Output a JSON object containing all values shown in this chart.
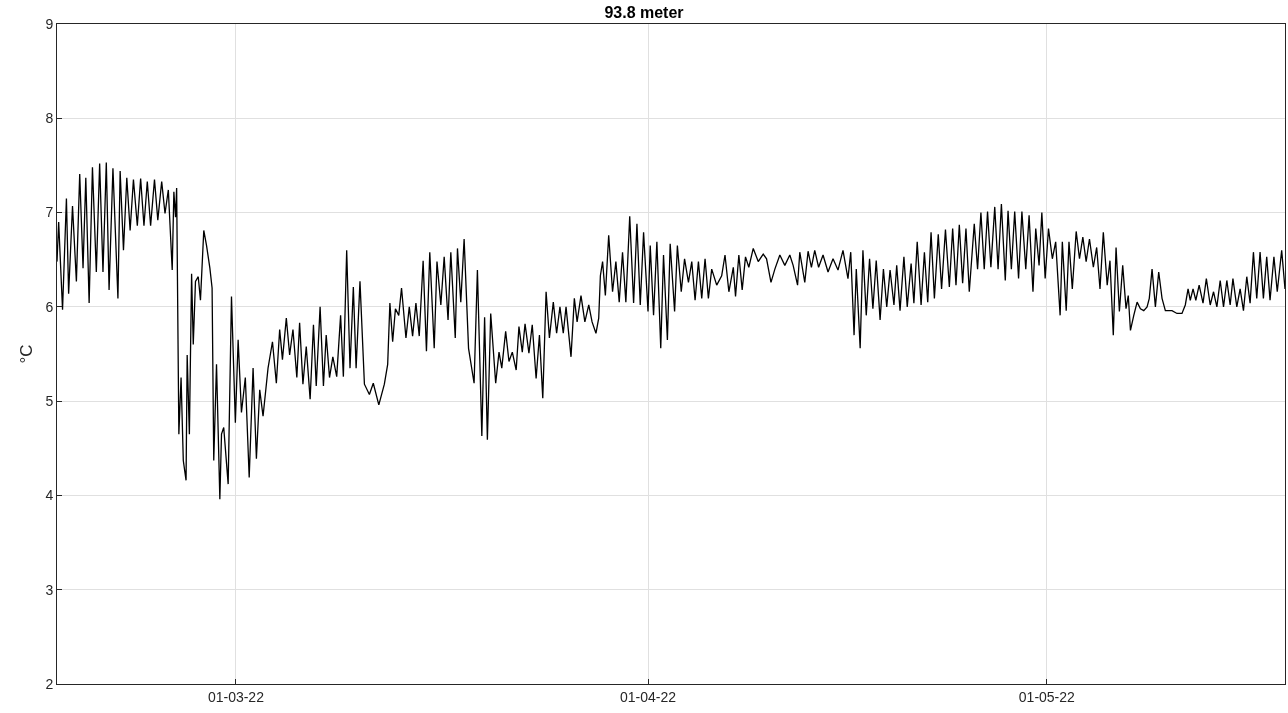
{
  "chart_data": {
    "type": "line",
    "title": "93.8 meter",
    "ylabel": "°C",
    "xlim": [
      "2022-02-15T13:00",
      "2022-05-18T22:00"
    ],
    "ylim": [
      2,
      9
    ],
    "yticks": [
      2,
      3,
      4,
      5,
      6,
      7,
      8,
      9
    ],
    "xticks": [
      {
        "value": "2022-03-01",
        "label": "01-03-22"
      },
      {
        "value": "2022-04-01",
        "label": "01-04-22"
      },
      {
        "value": "2022-05-01",
        "label": "01-05-22"
      }
    ],
    "grid": true,
    "marker": "none",
    "line_style": "solid",
    "x": [
      "2022-02-15T13:00",
      "2022-02-15T16:00",
      "2022-02-15T23:00",
      "2022-02-16T06:00",
      "2022-02-16T10:00",
      "2022-02-16T17:00",
      "2022-02-17T00:00",
      "2022-02-17T06:00",
      "2022-02-17T12:00",
      "2022-02-17T17:00",
      "2022-02-17T23:00",
      "2022-02-18T05:00",
      "2022-02-18T12:00",
      "2022-02-18T18:00",
      "2022-02-19T00:00",
      "2022-02-19T06:00",
      "2022-02-19T11:00",
      "2022-02-19T18:00",
      "2022-02-20T03:00",
      "2022-02-20T07:00",
      "2022-02-20T13:00",
      "2022-02-20T19:00",
      "2022-02-21T01:00",
      "2022-02-21T07:00",
      "2022-02-21T14:00",
      "2022-02-21T20:00",
      "2022-02-22T02:00",
      "2022-02-22T08:00",
      "2022-02-22T14:00",
      "2022-02-22T21:00",
      "2022-02-23T03:00",
      "2022-02-23T10:00",
      "2022-02-23T16:00",
      "2022-02-23T22:00",
      "2022-02-24T05:00",
      "2022-02-24T08:00",
      "2022-02-24T11:00",
      "2022-02-24T13:00",
      "2022-02-24T17:00",
      "2022-02-24T21:00",
      "2022-02-25T01:00",
      "2022-02-25T06:00",
      "2022-02-25T08:00",
      "2022-02-25T12:00",
      "2022-02-25T16:00",
      "2022-02-25T19:00",
      "2022-02-25T23:00",
      "2022-02-26T04:00",
      "2022-02-26T08:00",
      "2022-02-26T14:00",
      "2022-02-26T19:00",
      "2022-02-27T01:00",
      "2022-02-27T05:00",
      "2022-02-27T08:00",
      "2022-02-27T13:00",
      "2022-02-27T19:00",
      "2022-02-27T22:00",
      "2022-02-28T02:00",
      "2022-02-28T10:00",
      "2022-02-28T16:00",
      "2022-02-28T23:00",
      "2022-03-01T04:00",
      "2022-03-01T10:00",
      "2022-03-01T17:00",
      "2022-03-02T00:00",
      "2022-03-02T07:00",
      "2022-03-02T13:00",
      "2022-03-02T19:00",
      "2022-03-03T01:00",
      "2022-03-03T10:00",
      "2022-03-03T18:00",
      "2022-03-04T01:00",
      "2022-03-04T07:00",
      "2022-03-04T12:00",
      "2022-03-04T19:00",
      "2022-03-05T01:00",
      "2022-03-05T07:00",
      "2022-03-05T14:00",
      "2022-03-05T19:00",
      "2022-03-06T01:00",
      "2022-03-06T07:00",
      "2022-03-06T14:00",
      "2022-03-06T20:00",
      "2022-03-07T01:00",
      "2022-03-07T08:00",
      "2022-03-07T14:00",
      "2022-03-07T19:00",
      "2022-03-08T01:00",
      "2022-03-08T07:00",
      "2022-03-08T14:00",
      "2022-03-08T21:00",
      "2022-03-09T02:00",
      "2022-03-09T08:00",
      "2022-03-09T14:00",
      "2022-03-09T20:00",
      "2022-03-10T01:00",
      "2022-03-10T08:00",
      "2022-03-10T16:00",
      "2022-03-11T01:00",
      "2022-03-11T08:00",
      "2022-03-11T18:00",
      "2022-03-12T04:00",
      "2022-03-12T10:00",
      "2022-03-12T14:00",
      "2022-03-12T19:00",
      "2022-03-13T00:00",
      "2022-03-13T06:00",
      "2022-03-13T11:00",
      "2022-03-13T19:00",
      "2022-03-14T01:00",
      "2022-03-14T07:00",
      "2022-03-14T13:00",
      "2022-03-14T19:00",
      "2022-03-15T02:00",
      "2022-03-15T08:00",
      "2022-03-15T14:00",
      "2022-03-15T22:00",
      "2022-03-16T03:00",
      "2022-03-16T10:00",
      "2022-03-16T16:00",
      "2022-03-16T23:00",
      "2022-03-17T04:00",
      "2022-03-17T12:00",
      "2022-03-17T16:00",
      "2022-03-17T22:00",
      "2022-03-18T04:00",
      "2022-03-18T12:00",
      "2022-03-18T22:00",
      "2022-03-19T04:00",
      "2022-03-19T12:00",
      "2022-03-19T17:00",
      "2022-03-19T22:00",
      "2022-03-20T04:00",
      "2022-03-20T13:00",
      "2022-03-20T19:00",
      "2022-03-21T00:00",
      "2022-03-21T07:00",
      "2022-03-21T13:00",
      "2022-03-21T19:00",
      "2022-03-22T02:00",
      "2022-03-22T07:00",
      "2022-03-22T13:00",
      "2022-03-22T18:00",
      "2022-03-23T01:00",
      "2022-03-23T07:00",
      "2022-03-23T14:00",
      "2022-03-23T20:00",
      "2022-03-24T02:00",
      "2022-03-24T08:00",
      "2022-03-24T14:00",
      "2022-03-24T21:00",
      "2022-03-25T03:00",
      "2022-03-25T09:00",
      "2022-03-25T15:00",
      "2022-03-25T20:00",
      "2022-03-26T05:00",
      "2022-03-26T11:00",
      "2022-03-26T16:00",
      "2022-03-26T23:00",
      "2022-03-27T06:00",
      "2022-03-27T13:00",
      "2022-03-27T19:00",
      "2022-03-28T02:00",
      "2022-03-28T07:00",
      "2022-03-28T10:00",
      "2022-03-28T14:00",
      "2022-03-28T19:00",
      "2022-03-29T01:00",
      "2022-03-29T08:00",
      "2022-03-29T14:00",
      "2022-03-29T20:00",
      "2022-03-30T02:00",
      "2022-03-30T08:00",
      "2022-03-30T15:00",
      "2022-03-30T22:00",
      "2022-03-31T04:00",
      "2022-03-31T10:00",
      "2022-03-31T16:00",
      "2022-04-01T00:00",
      "2022-04-01T04:00",
      "2022-04-01T10:00",
      "2022-04-01T16:00",
      "2022-04-01T23:00",
      "2022-04-02T04:00",
      "2022-04-02T11:00",
      "2022-04-02T16:00",
      "2022-04-03T00:00",
      "2022-04-03T05:00",
      "2022-04-03T12:00",
      "2022-04-03T18:00",
      "2022-04-04T01:00",
      "2022-04-04T07:00",
      "2022-04-04T13:00",
      "2022-04-04T19:00",
      "2022-04-05T01:00",
      "2022-04-05T07:00",
      "2022-04-05T13:00",
      "2022-04-05T19:00",
      "2022-04-06T04:00",
      "2022-04-06T13:00",
      "2022-04-06T19:00",
      "2022-04-07T02:00",
      "2022-04-07T10:00",
      "2022-04-07T14:00",
      "2022-04-07T20:00",
      "2022-04-08T02:00",
      "2022-04-08T08:00",
      "2022-04-08T14:00",
      "2022-04-08T22:00",
      "2022-04-09T07:00",
      "2022-04-09T16:00",
      "2022-04-09T22:00",
      "2022-04-10T06:00",
      "2022-04-10T13:00",
      "2022-04-10T22:00",
      "2022-04-11T07:00",
      "2022-04-11T16:00",
      "2022-04-11T22:00",
      "2022-04-12T06:00",
      "2022-04-12T10:00",
      "2022-04-12T19:00",
      "2022-04-13T01:00",
      "2022-04-13T07:00",
      "2022-04-13T13:00",
      "2022-04-13T20:00",
      "2022-04-14T04:00",
      "2022-04-14T13:00",
      "2022-04-14T22:00",
      "2022-04-15T07:00",
      "2022-04-15T16:00",
      "2022-04-16T01:00",
      "2022-04-16T06:00",
      "2022-04-16T12:00",
      "2022-04-16T16:00",
      "2022-04-16T23:00",
      "2022-04-17T04:00",
      "2022-04-17T10:00",
      "2022-04-17T16:00",
      "2022-04-17T22:00",
      "2022-04-18T04:00",
      "2022-04-18T11:00",
      "2022-04-18T17:00",
      "2022-04-18T23:00",
      "2022-04-19T05:00",
      "2022-04-19T12:00",
      "2022-04-19T17:00",
      "2022-04-19T23:00",
      "2022-04-20T06:00",
      "2022-04-20T12:00",
      "2022-04-20T19:00",
      "2022-04-21T00:00",
      "2022-04-21T06:00",
      "2022-04-21T13:00",
      "2022-04-21T19:00",
      "2022-04-22T01:00",
      "2022-04-22T07:00",
      "2022-04-22T13:00",
      "2022-04-22T20:00",
      "2022-04-23T02:00",
      "2022-04-23T09:00",
      "2022-04-23T16:00",
      "2022-04-23T22:00",
      "2022-04-24T04:00",
      "2022-04-24T10:00",
      "2022-04-24T16:00",
      "2022-04-24T22:00",
      "2022-04-25T04:00",
      "2022-04-25T13:00",
      "2022-04-25T19:00",
      "2022-04-26T01:00",
      "2022-04-26T07:00",
      "2022-04-26T13:00",
      "2022-04-26T19:00",
      "2022-04-27T02:00",
      "2022-04-27T08:00",
      "2022-04-27T14:00",
      "2022-04-27T21:00",
      "2022-04-28T02:00",
      "2022-04-28T08:00",
      "2022-04-28T14:00",
      "2022-04-28T21:00",
      "2022-04-29T03:00",
      "2022-04-29T10:00",
      "2022-04-29T16:00",
      "2022-04-29T23:00",
      "2022-04-30T04:00",
      "2022-04-30T10:00",
      "2022-04-30T15:00",
      "2022-04-30T21:00",
      "2022-05-01T03:00",
      "2022-05-01T10:00",
      "2022-05-01T16:00",
      "2022-05-02T00:00",
      "2022-05-02T04:00",
      "2022-05-02T11:00",
      "2022-05-02T16:00",
      "2022-05-02T22:00",
      "2022-05-03T05:00",
      "2022-05-03T11:00",
      "2022-05-03T17:00",
      "2022-05-03T23:00",
      "2022-05-04T05:00",
      "2022-05-04T12:00",
      "2022-05-04T18:00",
      "2022-05-05T00:00",
      "2022-05-05T06:00",
      "2022-05-05T13:00",
      "2022-05-05T18:00",
      "2022-05-06T00:00",
      "2022-05-06T05:00",
      "2022-05-06T11:00",
      "2022-05-06T17:00",
      "2022-05-06T23:00",
      "2022-05-07T03:00",
      "2022-05-07T07:00",
      "2022-05-07T13:00",
      "2022-05-07T19:00",
      "2022-05-08T01:00",
      "2022-05-08T07:00",
      "2022-05-08T13:00",
      "2022-05-08T17:00",
      "2022-05-08T22:00",
      "2022-05-09T04:00",
      "2022-05-09T10:00",
      "2022-05-09T16:00",
      "2022-05-09T22:00",
      "2022-05-10T10:00",
      "2022-05-10T19:00",
      "2022-05-11T04:00",
      "2022-05-11T10:00",
      "2022-05-11T15:00",
      "2022-05-11T19:00",
      "2022-05-12T00:00",
      "2022-05-12T05:00",
      "2022-05-12T11:00",
      "2022-05-12T18:00",
      "2022-05-13T00:00",
      "2022-05-13T07:00",
      "2022-05-13T13:00",
      "2022-05-13T19:00",
      "2022-05-14T01:00",
      "2022-05-14T07:00",
      "2022-05-14T13:00",
      "2022-05-14T19:00",
      "2022-05-15T00:00",
      "2022-05-15T07:00",
      "2022-05-15T13:00",
      "2022-05-15T19:00",
      "2022-05-16T01:00",
      "2022-05-16T07:00",
      "2022-05-16T13:00",
      "2022-05-16T19:00",
      "2022-05-17T01:00",
      "2022-05-17T07:00",
      "2022-05-17T13:00",
      "2022-05-17T19:00",
      "2022-05-18T02:00",
      "2022-05-18T08:00",
      "2022-05-18T16:00",
      "2022-05-18T22:00"
    ],
    "series": [
      {
        "color": "#000000",
        "values": [
          6.48,
          6.9,
          5.97,
          7.15,
          6.14,
          7.07,
          6.27,
          7.41,
          6.41,
          7.37,
          6.04,
          7.48,
          6.37,
          7.52,
          6.37,
          7.53,
          6.18,
          7.47,
          6.09,
          7.44,
          6.6,
          7.37,
          6.81,
          7.35,
          6.86,
          7.36,
          6.86,
          7.33,
          6.86,
          7.35,
          6.92,
          7.33,
          6.99,
          7.24,
          6.39,
          7.22,
          6.95,
          7.26,
          4.65,
          5.25,
          4.37,
          4.16,
          5.49,
          4.65,
          6.35,
          5.6,
          6.27,
          6.32,
          6.07,
          6.81,
          6.65,
          6.41,
          6.2,
          4.37,
          5.39,
          3.96,
          4.65,
          4.72,
          4.12,
          6.11,
          4.77,
          5.65,
          4.88,
          5.25,
          4.19,
          5.35,
          4.39,
          5.12,
          4.84,
          5.35,
          5.63,
          5.19,
          5.76,
          5.44,
          5.88,
          5.49,
          5.76,
          5.25,
          5.83,
          5.18,
          5.58,
          5.02,
          5.81,
          5.16,
          6.0,
          5.16,
          5.7,
          5.25,
          5.47,
          5.26,
          5.91,
          5.26,
          6.6,
          5.35,
          6.21,
          5.35,
          6.27,
          5.18,
          5.07,
          5.19,
          4.96,
          5.18,
          5.39,
          6.04,
          5.63,
          5.98,
          5.91,
          6.2,
          5.67,
          6.0,
          5.69,
          6.04,
          5.69,
          6.49,
          5.53,
          6.58,
          5.56,
          6.48,
          6.02,
          6.53,
          5.86,
          6.58,
          5.67,
          6.62,
          6.05,
          6.72,
          5.56,
          5.19,
          6.39,
          4.63,
          5.89,
          4.59,
          5.93,
          5.19,
          5.52,
          5.35,
          5.74,
          5.42,
          5.52,
          5.33,
          5.79,
          5.52,
          5.82,
          5.51,
          5.81,
          5.24,
          5.7,
          5.03,
          6.16,
          5.67,
          6.05,
          5.72,
          6.0,
          5.72,
          6.0,
          5.47,
          6.09,
          5.84,
          6.12,
          5.84,
          6.02,
          5.84,
          5.72,
          5.88,
          6.33,
          6.48,
          6.12,
          6.76,
          6.16,
          6.48,
          6.05,
          6.58,
          6.05,
          6.96,
          6.04,
          6.88,
          6.02,
          6.79,
          5.95,
          6.65,
          5.91,
          6.69,
          5.56,
          6.55,
          5.65,
          6.67,
          5.95,
          6.65,
          6.16,
          6.51,
          6.26,
          6.48,
          6.07,
          6.48,
          6.09,
          6.51,
          6.09,
          6.4,
          6.23,
          6.33,
          6.55,
          6.16,
          6.42,
          6.11,
          6.55,
          6.18,
          6.53,
          6.42,
          6.62,
          6.48,
          6.56,
          6.51,
          6.26,
          6.4,
          6.55,
          6.44,
          6.55,
          6.44,
          6.23,
          6.58,
          6.26,
          6.59,
          6.42,
          6.6,
          6.42,
          6.55,
          6.37,
          6.51,
          6.39,
          6.6,
          6.3,
          6.58,
          5.7,
          6.4,
          5.56,
          6.6,
          5.91,
          6.51,
          5.98,
          6.49,
          5.86,
          6.4,
          6.0,
          6.39,
          6.02,
          6.44,
          5.96,
          6.53,
          6.0,
          6.46,
          6.04,
          6.69,
          6.02,
          6.58,
          6.05,
          6.79,
          6.09,
          6.77,
          6.19,
          6.82,
          6.21,
          6.83,
          6.23,
          6.87,
          6.25,
          6.83,
          6.16,
          6.88,
          6.4,
          7.0,
          6.4,
          7.01,
          6.42,
          7.06,
          6.4,
          7.09,
          6.28,
          7.02,
          6.4,
          7.01,
          6.3,
          7.01,
          6.4,
          6.97,
          6.16,
          6.83,
          6.44,
          7.0,
          6.3,
          6.83,
          6.51,
          6.69,
          5.91,
          6.69,
          5.96,
          6.69,
          6.19,
          6.8,
          6.51,
          6.74,
          6.48,
          6.72,
          6.42,
          6.63,
          6.19,
          6.79,
          6.23,
          6.49,
          5.7,
          6.63,
          5.95,
          6.44,
          5.98,
          6.12,
          5.75,
          5.91,
          6.05,
          5.98,
          5.96,
          6.0,
          6.09,
          6.4,
          6.0,
          6.37,
          6.09,
          5.96,
          5.96,
          5.93,
          5.93,
          6.02,
          6.19,
          6.07,
          6.19,
          6.07,
          6.23,
          6.04,
          6.3,
          6.02,
          6.16,
          6.0,
          6.28,
          6.0,
          6.28,
          6.02,
          6.3,
          6.0,
          6.19,
          5.96,
          6.32,
          6.04,
          6.58,
          6.09,
          6.58,
          6.09,
          6.53,
          6.07,
          6.53,
          6.16,
          6.6,
          6.19
        ]
      }
    ]
  }
}
